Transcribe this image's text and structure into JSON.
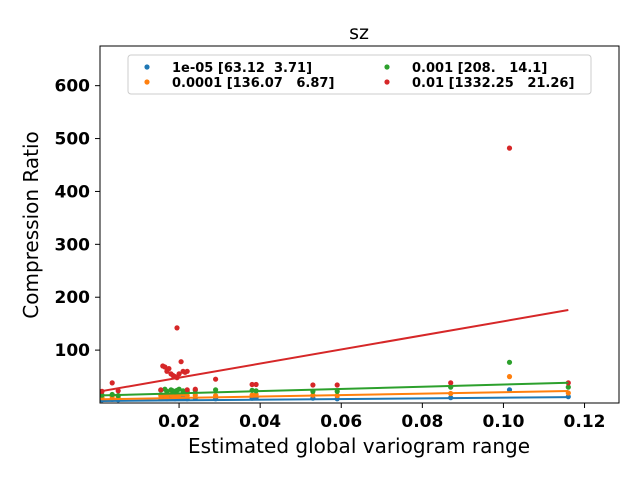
{
  "chart_data": {
    "type": "scatter",
    "title": "sz",
    "xlabel": "Estimated global variogram range",
    "ylabel": "Compression Ratio",
    "xlim": [
      0.0005,
      0.1285
    ],
    "ylim": [
      0,
      675
    ],
    "xticks": [
      0.02,
      0.04,
      0.06,
      0.08,
      0.1,
      0.12
    ],
    "xtick_labels": [
      "0.02",
      "0.04",
      "0.06",
      "0.08",
      "0.10",
      "0.12"
    ],
    "yticks": [
      100,
      200,
      300,
      400,
      500,
      600
    ],
    "ytick_labels": [
      "100",
      "200",
      "300",
      "400",
      "500",
      "600"
    ],
    "legend_position": "upper center",
    "series": [
      {
        "name": "1e-05 [63.12  3.71]",
        "color": "#1f77b4",
        "fit": {
          "slope": 63.12,
          "intercept": 3.71
        },
        "x": [
          0.001,
          0.0035,
          0.005,
          0.0155,
          0.0165,
          0.017,
          0.018,
          0.0185,
          0.019,
          0.0195,
          0.02,
          0.021,
          0.022,
          0.024,
          0.029,
          0.038,
          0.039,
          0.053,
          0.059,
          0.087,
          0.1015,
          0.116
        ],
        "y": [
          6,
          7,
          6,
          8,
          9,
          8,
          9,
          10,
          8,
          9,
          10,
          9,
          8,
          9,
          8,
          9,
          10,
          9,
          8,
          10,
          25,
          12
        ]
      },
      {
        "name": "0.0001 [136.07   6.87]",
        "color": "#ff7f0e",
        "fit": {
          "slope": 136.07,
          "intercept": 6.87
        },
        "x": [
          0.001,
          0.0035,
          0.005,
          0.0155,
          0.0165,
          0.017,
          0.018,
          0.0185,
          0.019,
          0.0195,
          0.02,
          0.021,
          0.022,
          0.024,
          0.029,
          0.038,
          0.039,
          0.053,
          0.059,
          0.087,
          0.1015,
          0.116
        ],
        "y": [
          10,
          12,
          11,
          14,
          15,
          13,
          16,
          15,
          14,
          16,
          15,
          17,
          14,
          15,
          14,
          15,
          16,
          15,
          14,
          18,
          50,
          19
        ]
      },
      {
        "name": "0.001 [208.   14.1]",
        "color": "#2ca02c",
        "fit": {
          "slope": 208.0,
          "intercept": 14.1
        },
        "x": [
          0.001,
          0.0035,
          0.005,
          0.0155,
          0.0165,
          0.017,
          0.018,
          0.0185,
          0.019,
          0.0195,
          0.02,
          0.021,
          0.022,
          0.024,
          0.029,
          0.038,
          0.039,
          0.053,
          0.059,
          0.087,
          0.1015,
          0.116
        ],
        "y": [
          15,
          16,
          14,
          24,
          26,
          22,
          25,
          23,
          21,
          24,
          26,
          23,
          22,
          24,
          25,
          24,
          23,
          22,
          22,
          30,
          77,
          30
        ]
      },
      {
        "name": "0.01 [1332.25   21.26]",
        "color": "#d62728",
        "fit": {
          "slope": 1332.25,
          "intercept": 21.26
        },
        "x": [
          0.001,
          0.0035,
          0.005,
          0.0155,
          0.016,
          0.0165,
          0.017,
          0.0175,
          0.018,
          0.0185,
          0.019,
          0.0195,
          0.0195,
          0.02,
          0.0205,
          0.021,
          0.0215,
          0.022,
          0.022,
          0.024,
          0.029,
          0.038,
          0.039,
          0.053,
          0.059,
          0.087,
          0.1015,
          0.116
        ],
        "y": [
          22,
          38,
          23,
          25,
          70,
          68,
          60,
          65,
          55,
          52,
          50,
          142,
          48,
          55,
          78,
          60,
          58,
          60,
          25,
          26,
          45,
          35,
          35,
          34,
          34,
          38,
          482,
          38
        ]
      }
    ]
  }
}
